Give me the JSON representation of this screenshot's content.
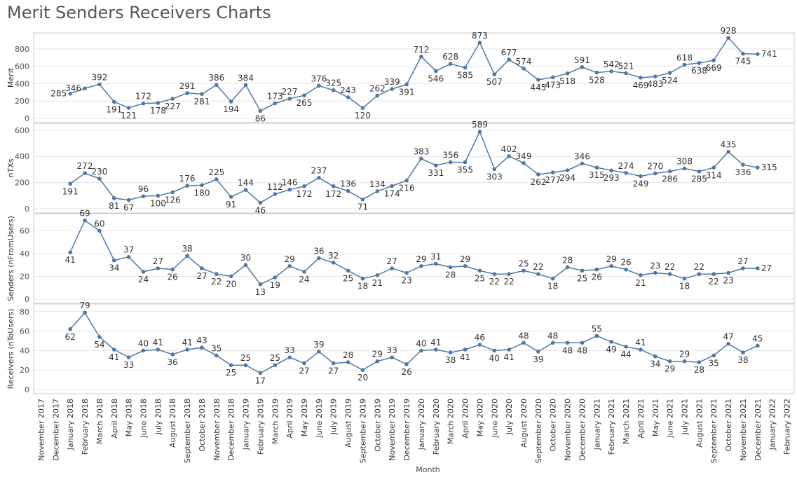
{
  "title": "Merit Senders Receivers Charts",
  "colors": {
    "line": "#4e79a7",
    "grid": "#e6e6e6",
    "border": "#cccccc"
  },
  "chart_data": {
    "type": "line",
    "xlabel": "Month",
    "months": [
      "November 2017",
      "December 2017",
      "January 2018",
      "February 2018",
      "March 2018",
      "April 2018",
      "May 2018",
      "June 2018",
      "July 2018",
      "August 2018",
      "September 2018",
      "October 2018",
      "November 2018",
      "December 2018",
      "January 2019",
      "February 2019",
      "March 2019",
      "April 2019",
      "May 2019",
      "June 2019",
      "July 2019",
      "August 2019",
      "September 2019",
      "October 2019",
      "November 2019",
      "December 2019",
      "January 2020",
      "February 2020",
      "March 2020",
      "April 2020",
      "May 2020",
      "June 2020",
      "July 2020",
      "August 2020",
      "September 2020",
      "October 2020",
      "November 2020",
      "December 2020",
      "January 2021",
      "February 2021",
      "March 2021",
      "April 2021",
      "May 2021",
      "June 2021",
      "July 2021",
      "August 2021",
      "September 2021",
      "October 2021",
      "November 2021",
      "December 2021",
      "January 2022",
      "February 2022"
    ],
    "panels": [
      {
        "ylabel": "Merit",
        "ticks": [
          0,
          200,
          400,
          600,
          800
        ],
        "ylim": [
          0,
          920
        ],
        "values": [
          null,
          null,
          285,
          346,
          392,
          191,
          121,
          172,
          178,
          227,
          291,
          281,
          386,
          194,
          384,
          86,
          173,
          227,
          265,
          376,
          325,
          243,
          120,
          262,
          339,
          391,
          712,
          546,
          628,
          585,
          873,
          507,
          677,
          574,
          445,
          473,
          518,
          591,
          528,
          542,
          521,
          469,
          483,
          524,
          618,
          638,
          669,
          928,
          745,
          741,
          null,
          null
        ],
        "labelpos": [
          null,
          null,
          "l",
          "l",
          "a",
          "b",
          "b",
          "a",
          "b",
          "b",
          "a",
          "b",
          "a",
          "b",
          "a",
          "b",
          "a",
          "a",
          "b",
          "a",
          "a",
          "a",
          "b",
          "a",
          "a",
          "b",
          "a",
          "b",
          "a",
          "b",
          "a",
          "b",
          "a",
          "a",
          "b",
          "b",
          "b",
          "a",
          "b",
          "a",
          "a",
          "b",
          "b",
          "b",
          "a",
          "b",
          "b",
          "a",
          "b",
          "r",
          null,
          null
        ]
      },
      {
        "ylabel": "nTXs",
        "ticks": [
          0,
          200,
          400,
          600
        ],
        "ylim": [
          0,
          610
        ],
        "values": [
          null,
          null,
          191,
          272,
          230,
          81,
          67,
          96,
          100,
          126,
          176,
          180,
          225,
          91,
          144,
          46,
          112,
          146,
          172,
          237,
          172,
          136,
          71,
          134,
          174,
          216,
          383,
          331,
          356,
          355,
          589,
          303,
          402,
          349,
          262,
          277,
          294,
          346,
          315,
          293,
          274,
          249,
          270,
          286,
          308,
          285,
          314,
          435,
          336,
          315,
          null,
          null
        ],
        "labelpos": [
          null,
          null,
          "b",
          "a",
          "a",
          "b",
          "b",
          "a",
          "b",
          "b",
          "a",
          "b",
          "a",
          "b",
          "a",
          "b",
          "a",
          "a",
          "b",
          "a",
          "b",
          "a",
          "b",
          "a",
          "b",
          "b",
          "a",
          "b",
          "a",
          "b",
          "a",
          "b",
          "a",
          "a",
          "b",
          "b",
          "b",
          "a",
          "b",
          "b",
          "a",
          "b",
          "a",
          "b",
          "a",
          "b",
          "b",
          "a",
          "b",
          "r",
          null,
          null
        ]
      },
      {
        "ylabel": "Senders (nFromUsers)",
        "ticks": [
          0,
          20,
          40,
          60
        ],
        "ylim": [
          0,
          70
        ],
        "values": [
          null,
          null,
          41,
          69,
          60,
          34,
          37,
          24,
          27,
          26,
          38,
          27,
          22,
          20,
          30,
          13,
          19,
          29,
          24,
          36,
          32,
          25,
          18,
          21,
          27,
          23,
          29,
          31,
          28,
          29,
          25,
          22,
          22,
          25,
          22,
          18,
          28,
          25,
          26,
          29,
          26,
          21,
          23,
          22,
          18,
          22,
          22,
          23,
          27,
          27,
          null,
          null
        ],
        "labelpos": [
          null,
          null,
          "b",
          "a",
          "a",
          "b",
          "a",
          "b",
          "a",
          "b",
          "a",
          "b",
          "b",
          "b",
          "a",
          "b",
          "b",
          "a",
          "b",
          "a",
          "a",
          "b",
          "b",
          "b",
          "a",
          "b",
          "a",
          "a",
          "b",
          "a",
          "b",
          "b",
          "b",
          "a",
          "a",
          "b",
          "a",
          "b",
          "b",
          "a",
          "a",
          "b",
          "a",
          "a",
          "b",
          "a",
          "b",
          "b",
          "a",
          "r",
          null,
          null
        ]
      },
      {
        "ylabel": "Receivers (nToUsers)",
        "ticks": [
          0,
          20,
          40,
          60,
          80
        ],
        "ylim": [
          0,
          82
        ],
        "values": [
          null,
          null,
          62,
          79,
          54,
          41,
          33,
          40,
          41,
          36,
          41,
          43,
          35,
          25,
          25,
          17,
          25,
          33,
          27,
          39,
          27,
          28,
          20,
          29,
          33,
          26,
          40,
          41,
          38,
          41,
          46,
          40,
          41,
          48,
          39,
          48,
          48,
          48,
          55,
          49,
          44,
          41,
          34,
          29,
          29,
          28,
          35,
          47,
          38,
          45,
          null,
          null
        ],
        "labelpos": [
          null,
          null,
          "b",
          "a",
          "b",
          "b",
          "b",
          "a",
          "a",
          "b",
          "a",
          "a",
          "a",
          "b",
          "a",
          "b",
          "a",
          "a",
          "b",
          "a",
          "b",
          "a",
          "b",
          "a",
          "a",
          "b",
          "a",
          "a",
          "b",
          "b",
          "a",
          "b",
          "b",
          "a",
          "b",
          "a",
          "b",
          "b",
          "a",
          "b",
          "b",
          "a",
          "b",
          "b",
          "a",
          "b",
          "b",
          "a",
          "b",
          "a",
          null,
          null
        ]
      }
    ]
  }
}
